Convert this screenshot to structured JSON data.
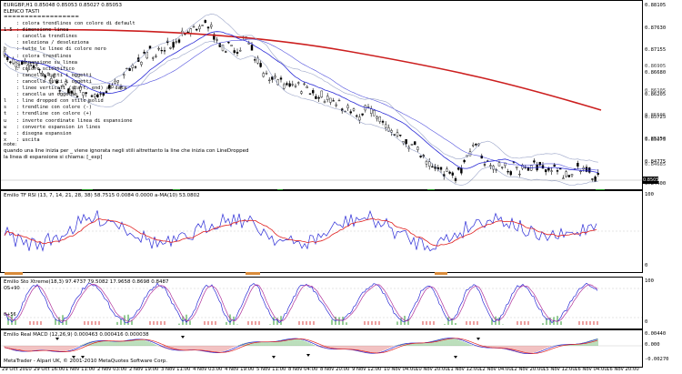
{
  "header": {
    "symbol_line": "EURGBP,H1  0.85048 0.85053 0.85027 0.85053",
    "list_title": "ELENCO TASTI",
    "separator": "=================="
  },
  "hotkeys": [
    {
      "key": "",
      "desc": ": colora trendlines con colore di default"
    },
    {
      "key": "1-5",
      "desc": ": dimensione linea"
    },
    {
      "key": "",
      "desc": ": cancella trendlines"
    },
    {
      "key": "",
      "desc": ": seleziona / deseleziona"
    },
    {
      "key": "b",
      "desc": ": tutte le linee di colore nero"
    },
    {
      "key": "c",
      "desc": ": colora trendlines"
    },
    {
      "key": "",
      "desc": ": espansione su linea"
    },
    {
      "key": "",
      "desc": ": colore scientifico"
    },
    {
      "key": "",
      "desc": ": cancella tutti i oggetti"
    },
    {
      "key": "",
      "desc": ": cancella tutti i oggetti"
    },
    {
      "key": "",
      "desc": ": linee verticali (start, end) al data"
    },
    {
      "key": "",
      "desc": ": cancella un oggetto"
    },
    {
      "key": "l",
      "desc": ": line dropped con stile solid"
    },
    {
      "key": "s",
      "desc": ": trendline con colore (-)"
    },
    {
      "key": "t",
      "desc": ": trendline con colore (+)"
    },
    {
      "key": "u",
      "desc": ": inverte coordinate linea di espansione"
    },
    {
      "key": "w",
      "desc": ": converte espansion in lines"
    },
    {
      "key": "e",
      "desc": ": disegna espansion"
    },
    {
      "key": "x",
      "desc": ": uscita"
    }
  ],
  "note": {
    "title": "note:",
    "line1": "quando una line inizia per _  viene ignorata negli stili altrettanto la line che inizia con LineDropped",
    "line2": "la linea di espansione si chiama: [_exp]"
  },
  "price_scale": [
    "0.88105",
    "0.87630",
    "0.87155",
    "0.86680",
    "0.86205",
    "0.85725",
    "0.85250",
    "0.84775",
    "0.84400"
  ],
  "price_scale_extra": [
    "0.86905",
    "0.86105",
    "0.85505",
    "0.85075",
    "0.84685"
  ],
  "current_price": "0.8505",
  "indicators": {
    "rsi_label": "Emilio TF RSI (13, 7, 14, 21, 28, 38) 58.7515 0.0084 0.0000 a-MA(10) 53.0802",
    "rsi_scale": [
      "100",
      "0"
    ],
    "sto_label": "Emilio Sto Xtreme(18,3) 97.4737 79.5082 17.9658 0.8698 0.8487",
    "sto_scale": [
      "100",
      "0"
    ],
    "sto_left_tags": [
      "OS+90",
      "0+56"
    ],
    "macd_label": "Emilio Real MACD (12,26,9) 0.000463 0.000416 0.000038",
    "macd_scale": [
      "0.00440",
      "0.000",
      "-0.00270"
    ]
  },
  "footer": {
    "copyright": "MetaTrader - Alpari UK, © 2001-2010 MetaQuotes Software Corp."
  },
  "time_axis": [
    "29 Oct 2010",
    "29 Oct 16:00",
    "1 Nov 11:00",
    "2 Nov 03:00",
    "2 Nov 19:00",
    "3 Nov 11:00",
    "4 Nov 03:00",
    "4 Nov 19:00",
    "5 Nov 11:00",
    "8 Nov 04:00",
    "8 Nov 20:00",
    "9 Nov 12:00",
    "10 Nov 04:00",
    "10 Nov 20:00",
    "11 Nov 12:00",
    "12 Nov 04:00",
    "12 Nov 20:00",
    "15 Nov 12:00",
    "16 Nov 04:00",
    "16 Nov 20:00"
  ],
  "colors": {
    "ma_slow": "#cc1f1f",
    "ma_fast": "#2a2ad6",
    "bands": "#9aa4c8",
    "rsi_line": "#2a2ad6",
    "rsi_signal": "#e02020",
    "hist_up": "#2e9b2e",
    "hist_down": "#d94040"
  }
}
